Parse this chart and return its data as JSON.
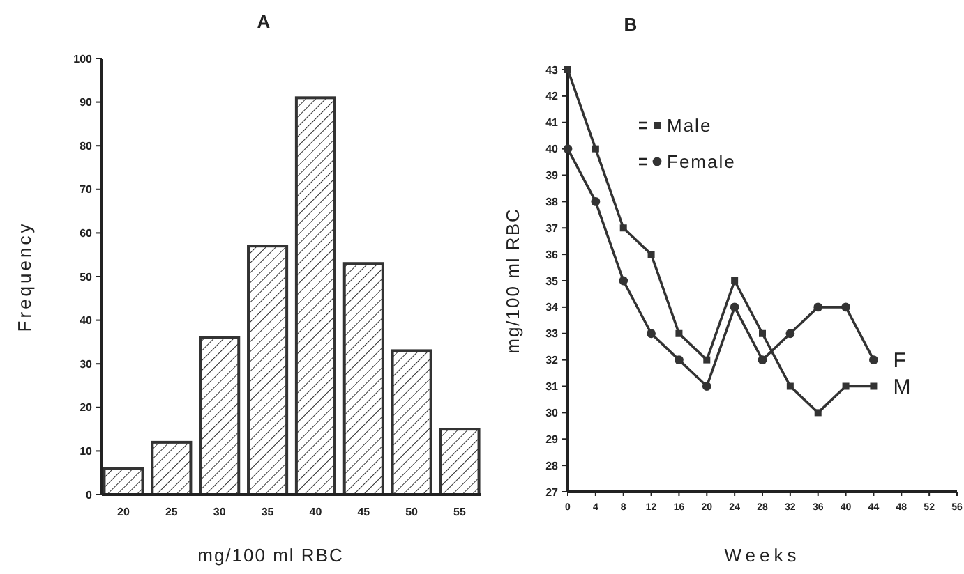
{
  "chart_data": [
    {
      "type": "bar",
      "title": "A",
      "xlabel": "mg/100 ml RBC",
      "ylabel": "Frequency",
      "categories": [
        "20",
        "25",
        "30",
        "35",
        "40",
        "45",
        "50",
        "55"
      ],
      "values": [
        6,
        12,
        36,
        57,
        91,
        53,
        33,
        15
      ],
      "color": "#333333",
      "ylim": [
        0,
        100
      ],
      "yticks": [
        0,
        10,
        20,
        30,
        40,
        50,
        60,
        70,
        80,
        90,
        100
      ],
      "grid": false
    },
    {
      "type": "line",
      "title": "B",
      "xlabel": "Weeks",
      "ylabel": "mg/100 ml RBC",
      "x": [
        0,
        4,
        8,
        12,
        16,
        20,
        24,
        28,
        32,
        36,
        40,
        44
      ],
      "series": [
        {
          "name": "Male",
          "color": "#333333",
          "marker": "square",
          "values": [
            43,
            40,
            37,
            36,
            33,
            32,
            35,
            33,
            31,
            30,
            31,
            31
          ]
        },
        {
          "name": "Female",
          "color": "#333333",
          "marker": "circle",
          "values": [
            40,
            38,
            35,
            33,
            32,
            31,
            34,
            32,
            33,
            34,
            34,
            32
          ]
        }
      ],
      "annotations": [
        {
          "text": "F",
          "x": 44,
          "y": 32
        },
        {
          "text": "M",
          "x": 44,
          "y": 31
        }
      ],
      "xlim": [
        0,
        56
      ],
      "xticks": [
        0,
        4,
        8,
        12,
        16,
        20,
        24,
        28,
        32,
        36,
        40,
        44,
        48,
        52,
        56
      ],
      "ylim": [
        27,
        43
      ],
      "yticks": [
        27,
        28,
        29,
        30,
        31,
        32,
        33,
        34,
        35,
        36,
        37,
        38,
        39,
        40,
        41,
        42,
        43
      ],
      "grid": false,
      "legend": "top left",
      "line_style": "solid"
    }
  ]
}
